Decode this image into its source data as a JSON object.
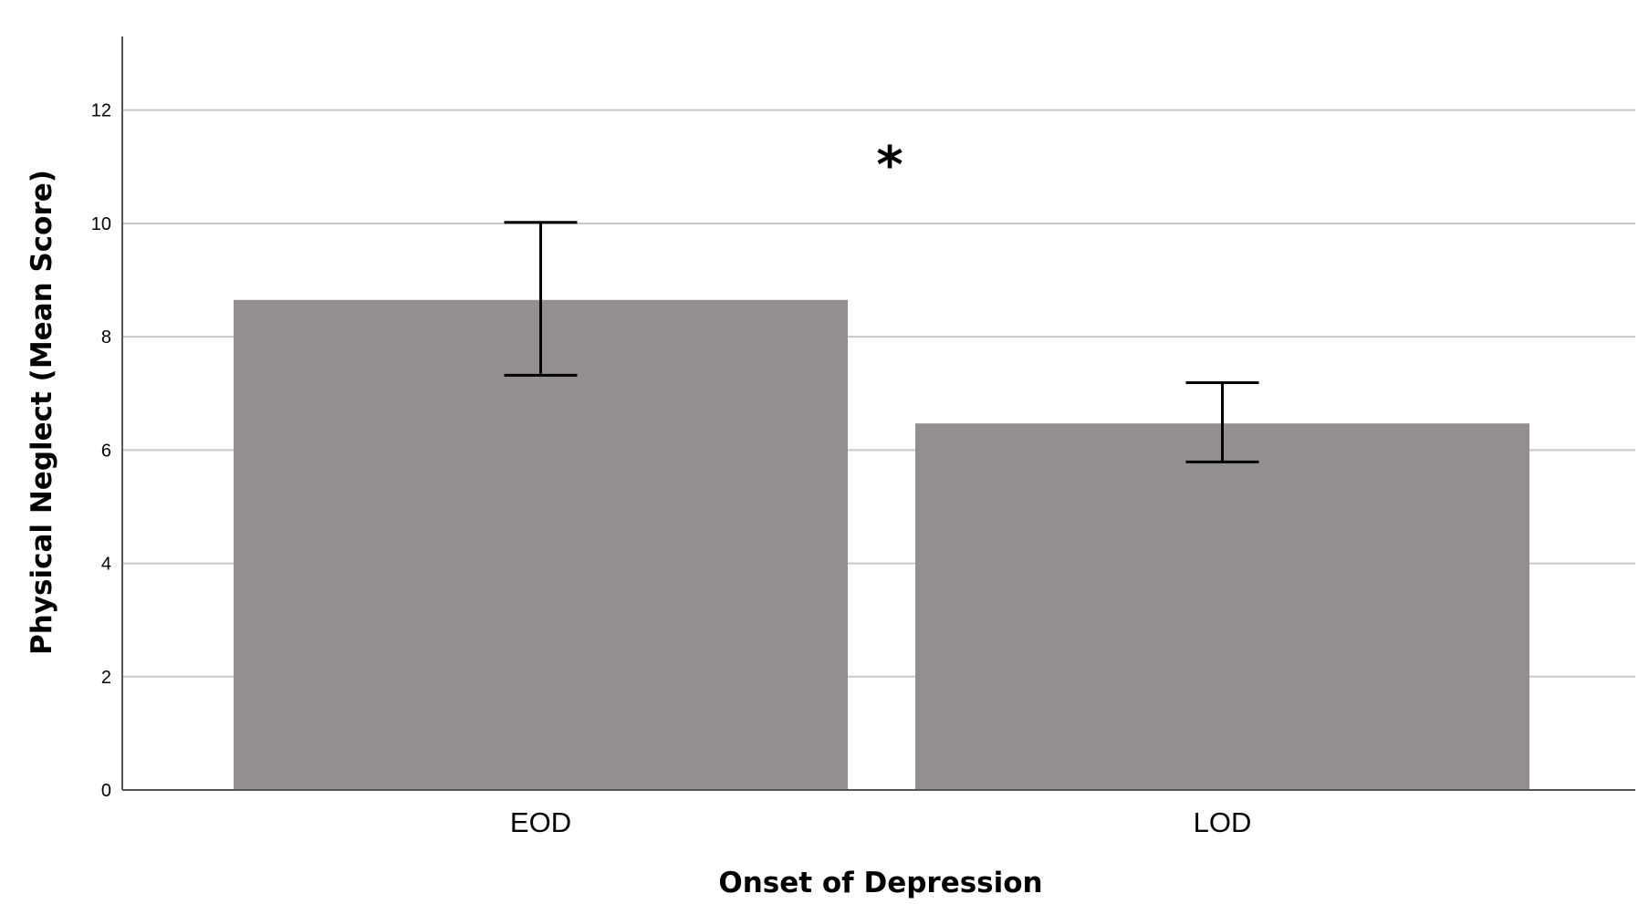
{
  "chart_data": {
    "type": "bar",
    "title": "",
    "xlabel": "Onset of Depression",
    "ylabel": "Physical Neglect (Mean Score)",
    "categories": [
      "EOD",
      "LOD"
    ],
    "values": [
      8.65,
      6.47
    ],
    "error_bars": [
      {
        "low": 7.32,
        "high": 10.02
      },
      {
        "low": 5.79,
        "high": 7.19
      }
    ],
    "ylim": [
      0,
      13.3
    ],
    "yticks": [
      0,
      2,
      4,
      6,
      8,
      10,
      12
    ],
    "grid": true,
    "legend": "none",
    "annotations": [
      "*"
    ],
    "bar_color": "#938f8e",
    "grid_color": "#c8c8c8",
    "axis_color": "#555555"
  }
}
